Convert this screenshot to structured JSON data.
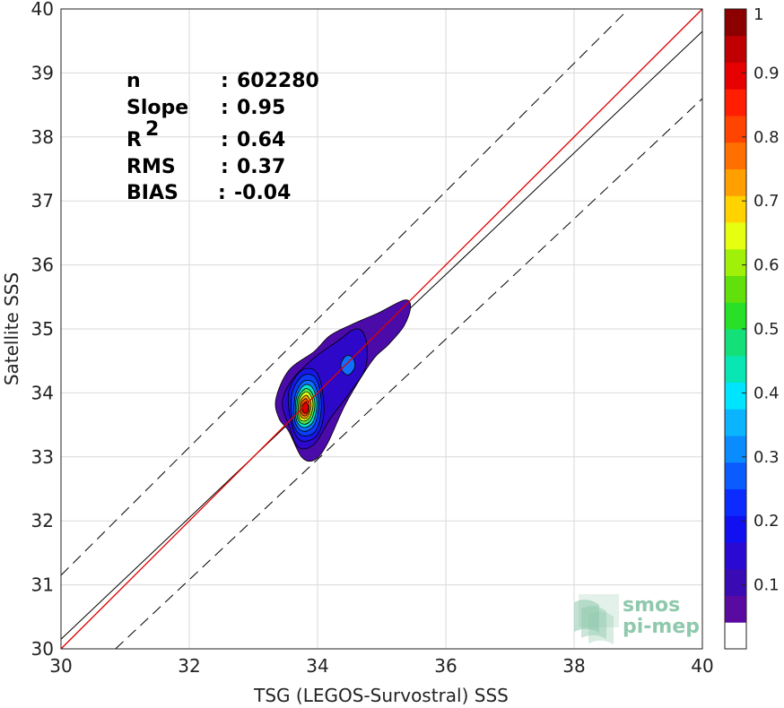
{
  "chart_data": {
    "type": "scatter",
    "subtype": "density-contour",
    "xlabel": "TSG (LEGOS-Survostral) SSS",
    "ylabel": "Satellite SSS",
    "xlim": [
      30,
      40
    ],
    "ylim": [
      30,
      40
    ],
    "xticks": [
      "30",
      "32",
      "34",
      "36",
      "38",
      "40"
    ],
    "yticks": [
      "30",
      "31",
      "32",
      "33",
      "34",
      "35",
      "36",
      "37",
      "38",
      "39",
      "40"
    ],
    "grid": true,
    "stats": [
      {
        "label": "n",
        "sep": ":",
        "value": "602280"
      },
      {
        "label": "Slope",
        "sep": ":",
        "value": "0.95"
      },
      {
        "label": "R",
        "sup": "2",
        "sep": ":",
        "value": "0.64"
      },
      {
        "label": "RMS",
        "sep": ":",
        "value": "0.37"
      },
      {
        "label": "BIAS",
        "sep": ":",
        "value": "-0.04"
      }
    ],
    "lines": {
      "identity": {
        "x": [
          30,
          40
        ],
        "y": [
          30,
          40
        ],
        "color": "#e00000"
      },
      "regression": {
        "x": [
          30,
          40
        ],
        "y": [
          30.15,
          39.65
        ],
        "color": "#000000"
      },
      "bounds_upper": {
        "x": [
          30,
          38.8
        ],
        "y": [
          31.15,
          39.95
        ],
        "dash": true
      },
      "bounds_lower": {
        "x": [
          30.85,
          40
        ],
        "y": [
          30,
          38.6
        ],
        "dash": true
      }
    },
    "density_contours": [
      {
        "level": 0.05,
        "color": "#4a0ba8",
        "points": [
          [
            33.55,
            33.4
          ],
          [
            33.75,
            33.0
          ],
          [
            33.95,
            32.95
          ],
          [
            34.15,
            33.2
          ],
          [
            34.45,
            33.85
          ],
          [
            34.85,
            34.5
          ],
          [
            35.1,
            34.75
          ],
          [
            35.35,
            35.05
          ],
          [
            35.45,
            35.35
          ],
          [
            35.35,
            35.45
          ],
          [
            34.95,
            35.25
          ],
          [
            34.6,
            35.1
          ],
          [
            34.2,
            34.9
          ],
          [
            33.95,
            34.65
          ],
          [
            33.55,
            34.35
          ],
          [
            33.35,
            33.9
          ],
          [
            33.4,
            33.6
          ]
        ]
      },
      {
        "level": 0.1,
        "color": "#2e08c8",
        "points": [
          [
            33.55,
            33.5
          ],
          [
            33.7,
            33.15
          ],
          [
            33.95,
            33.2
          ],
          [
            34.2,
            33.6
          ],
          [
            34.5,
            34.0
          ],
          [
            34.75,
            34.4
          ],
          [
            34.75,
            34.85
          ],
          [
            34.6,
            35.0
          ],
          [
            34.3,
            34.8
          ],
          [
            33.95,
            34.55
          ],
          [
            33.6,
            34.2
          ],
          [
            33.45,
            33.85
          ]
        ]
      },
      {
        "level": 0.15,
        "color": "#1818e6",
        "points": [
          [
            33.6,
            33.5
          ],
          [
            33.75,
            33.25
          ],
          [
            34.0,
            33.35
          ],
          [
            34.1,
            33.75
          ],
          [
            34.0,
            34.3
          ],
          [
            33.75,
            34.35
          ],
          [
            33.55,
            34.0
          ]
        ]
      },
      {
        "level": 0.2,
        "color": "#0a3cf5",
        "points": [
          [
            33.62,
            33.52
          ],
          [
            33.77,
            33.33
          ],
          [
            33.98,
            33.42
          ],
          [
            34.06,
            33.8
          ],
          [
            33.98,
            34.22
          ],
          [
            33.77,
            34.27
          ],
          [
            33.6,
            33.98
          ]
        ]
      },
      {
        "level": 0.25,
        "color": "#0f70ff",
        "points": [
          [
            33.65,
            33.55
          ],
          [
            33.78,
            33.4
          ],
          [
            33.95,
            33.5
          ],
          [
            34.02,
            33.82
          ],
          [
            33.95,
            34.14
          ],
          [
            33.78,
            34.18
          ],
          [
            33.65,
            33.95
          ]
        ]
      },
      {
        "level": 0.35,
        "color": "#09e3c9",
        "points": [
          [
            33.67,
            33.58
          ],
          [
            33.79,
            33.46
          ],
          [
            33.93,
            33.55
          ],
          [
            33.99,
            33.83
          ],
          [
            33.92,
            34.08
          ],
          [
            33.79,
            34.12
          ],
          [
            33.67,
            33.92
          ]
        ]
      },
      {
        "level": 0.5,
        "color": "#4de84d",
        "points": [
          [
            33.69,
            33.6
          ],
          [
            33.8,
            33.51
          ],
          [
            33.91,
            33.6
          ],
          [
            33.96,
            33.83
          ],
          [
            33.9,
            34.02
          ],
          [
            33.8,
            34.06
          ],
          [
            33.69,
            33.9
          ]
        ]
      },
      {
        "level": 0.6,
        "color": "#e3ff1c",
        "points": [
          [
            33.71,
            33.62
          ],
          [
            33.8,
            33.56
          ],
          [
            33.89,
            33.64
          ],
          [
            33.93,
            33.83
          ],
          [
            33.88,
            33.98
          ],
          [
            33.8,
            34.01
          ],
          [
            33.71,
            33.88
          ]
        ]
      },
      {
        "level": 0.7,
        "color": "#ffa000",
        "points": [
          [
            33.73,
            33.65
          ],
          [
            33.81,
            33.6
          ],
          [
            33.87,
            33.67
          ],
          [
            33.9,
            33.82
          ],
          [
            33.86,
            33.93
          ],
          [
            33.81,
            33.96
          ],
          [
            33.73,
            33.86
          ]
        ]
      },
      {
        "level": 0.8,
        "color": "#ff5000",
        "points": [
          [
            33.75,
            33.68
          ],
          [
            33.81,
            33.64
          ],
          [
            33.86,
            33.7
          ],
          [
            33.87,
            33.81
          ],
          [
            33.84,
            33.89
          ],
          [
            33.81,
            33.91
          ],
          [
            33.75,
            33.84
          ]
        ]
      },
      {
        "level": 0.9,
        "color": "#e00000",
        "points": [
          [
            33.77,
            33.71
          ],
          [
            33.82,
            33.68
          ],
          [
            33.85,
            33.73
          ],
          [
            33.85,
            33.8
          ],
          [
            33.83,
            33.85
          ],
          [
            33.82,
            33.86
          ],
          [
            33.77,
            33.81
          ]
        ]
      },
      {
        "level": 0.05,
        "color": "#0f70ff",
        "points": [
          [
            34.38,
            34.35
          ],
          [
            34.48,
            34.28
          ],
          [
            34.58,
            34.4
          ],
          [
            34.55,
            34.55
          ],
          [
            34.45,
            34.58
          ],
          [
            34.37,
            34.47
          ]
        ]
      }
    ],
    "colorbar": {
      "ticks": [
        "0.1",
        "0.2",
        "0.3",
        "0.4",
        "0.5",
        "0.6",
        "0.7",
        "0.8",
        "0.9",
        "1"
      ],
      "range": [
        0,
        1
      ],
      "colors": [
        "#ffffff",
        "#5a0aa0",
        "#3a0ab4",
        "#2a0ad2",
        "#1010f0",
        "#0c2cff",
        "#0a5cff",
        "#0a8cff",
        "#0ab4ff",
        "#00e4ff",
        "#08e6b4",
        "#14e07a",
        "#28e028",
        "#62e00c",
        "#a0f00a",
        "#e6ff10",
        "#ffd200",
        "#ffa000",
        "#ff7000",
        "#ff4400",
        "#ff1e00",
        "#e60000",
        "#c00000",
        "#8c0000"
      ]
    }
  },
  "logo": {
    "line1": "smos",
    "line2": "pi-mep"
  }
}
